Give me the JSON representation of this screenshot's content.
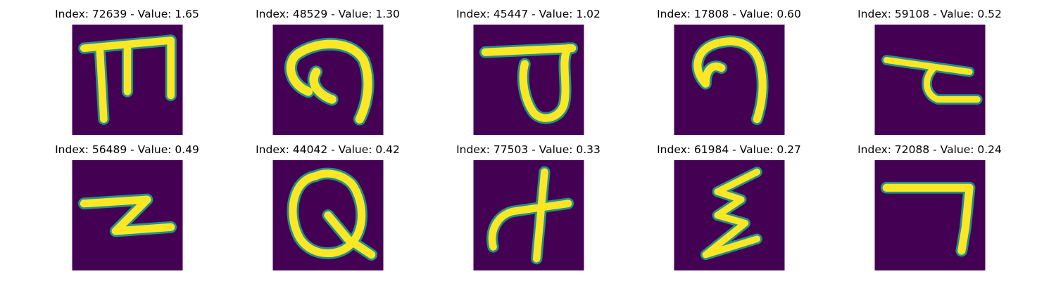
{
  "colors": {
    "background": "#440154",
    "stroke_mid": "#21918c",
    "stroke_edge": "#5ec962",
    "stroke_core": "#fde725"
  },
  "panels": [
    {
      "title": "Index: 72639 - Value: 1.65",
      "glyph": "glyph-m"
    },
    {
      "title": "Index: 48529 - Value: 1.30",
      "glyph": "glyph-hook-a"
    },
    {
      "title": "Index: 45447 - Value: 1.02",
      "glyph": "glyph-loop-a"
    },
    {
      "title": "Index: 17808 - Value: 0.60",
      "glyph": "glyph-hook-b"
    },
    {
      "title": "Index: 59108 - Value: 0.52",
      "glyph": "glyph-t-like"
    },
    {
      "title": "Index: 56489 - Value: 0.49",
      "glyph": "glyph-z"
    },
    {
      "title": "Index: 44042 - Value: 0.42",
      "glyph": "glyph-q"
    },
    {
      "title": "Index: 77503 - Value: 0.33",
      "glyph": "glyph-cross"
    },
    {
      "title": "Index: 61984 - Value: 0.27",
      "glyph": "glyph-epsilon"
    },
    {
      "title": "Index: 72088 - Value: 0.24",
      "glyph": "glyph-seven"
    }
  ]
}
